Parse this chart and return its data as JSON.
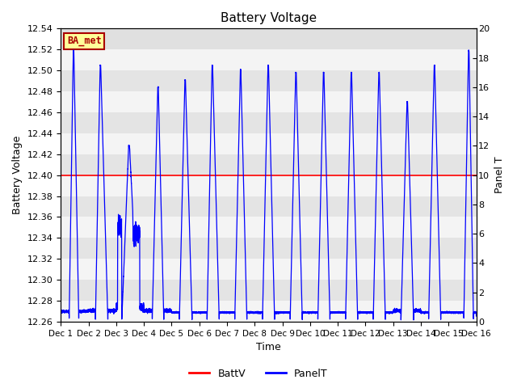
{
  "title": "Battery Voltage",
  "ylabel_left": "Battery Voltage",
  "ylabel_right": "Panel T",
  "xlabel": "Time",
  "ylim_left": [
    12.26,
    12.54
  ],
  "ylim_right": [
    0,
    20
  ],
  "xlim": [
    0,
    15
  ],
  "xtick_labels": [
    "Dec 1",
    "Dec 2",
    "Dec 3",
    "Dec 4",
    "Dec 5",
    "Dec 6",
    "Dec 7",
    "Dec 8",
    "Dec 9",
    "Dec 10",
    "Dec 11",
    "Dec 12",
    "Dec 13",
    "Dec 14",
    "Dec 15",
    "Dec 16"
  ],
  "battv_value": 12.4,
  "battv_color": "#ff0000",
  "panelt_color": "#0000ff",
  "legend_labels": [
    "BattV",
    "PanelT"
  ],
  "ba_met_label": "BA_met",
  "ba_met_bg": "#ffff99",
  "ba_met_border": "#aa0000",
  "background_color": "#ffffff",
  "plot_bg_light": "#f0f0f0",
  "plot_bg_dark": "#e0e0e0",
  "title_fontsize": 11,
  "axis_fontsize": 9,
  "tick_fontsize": 8
}
